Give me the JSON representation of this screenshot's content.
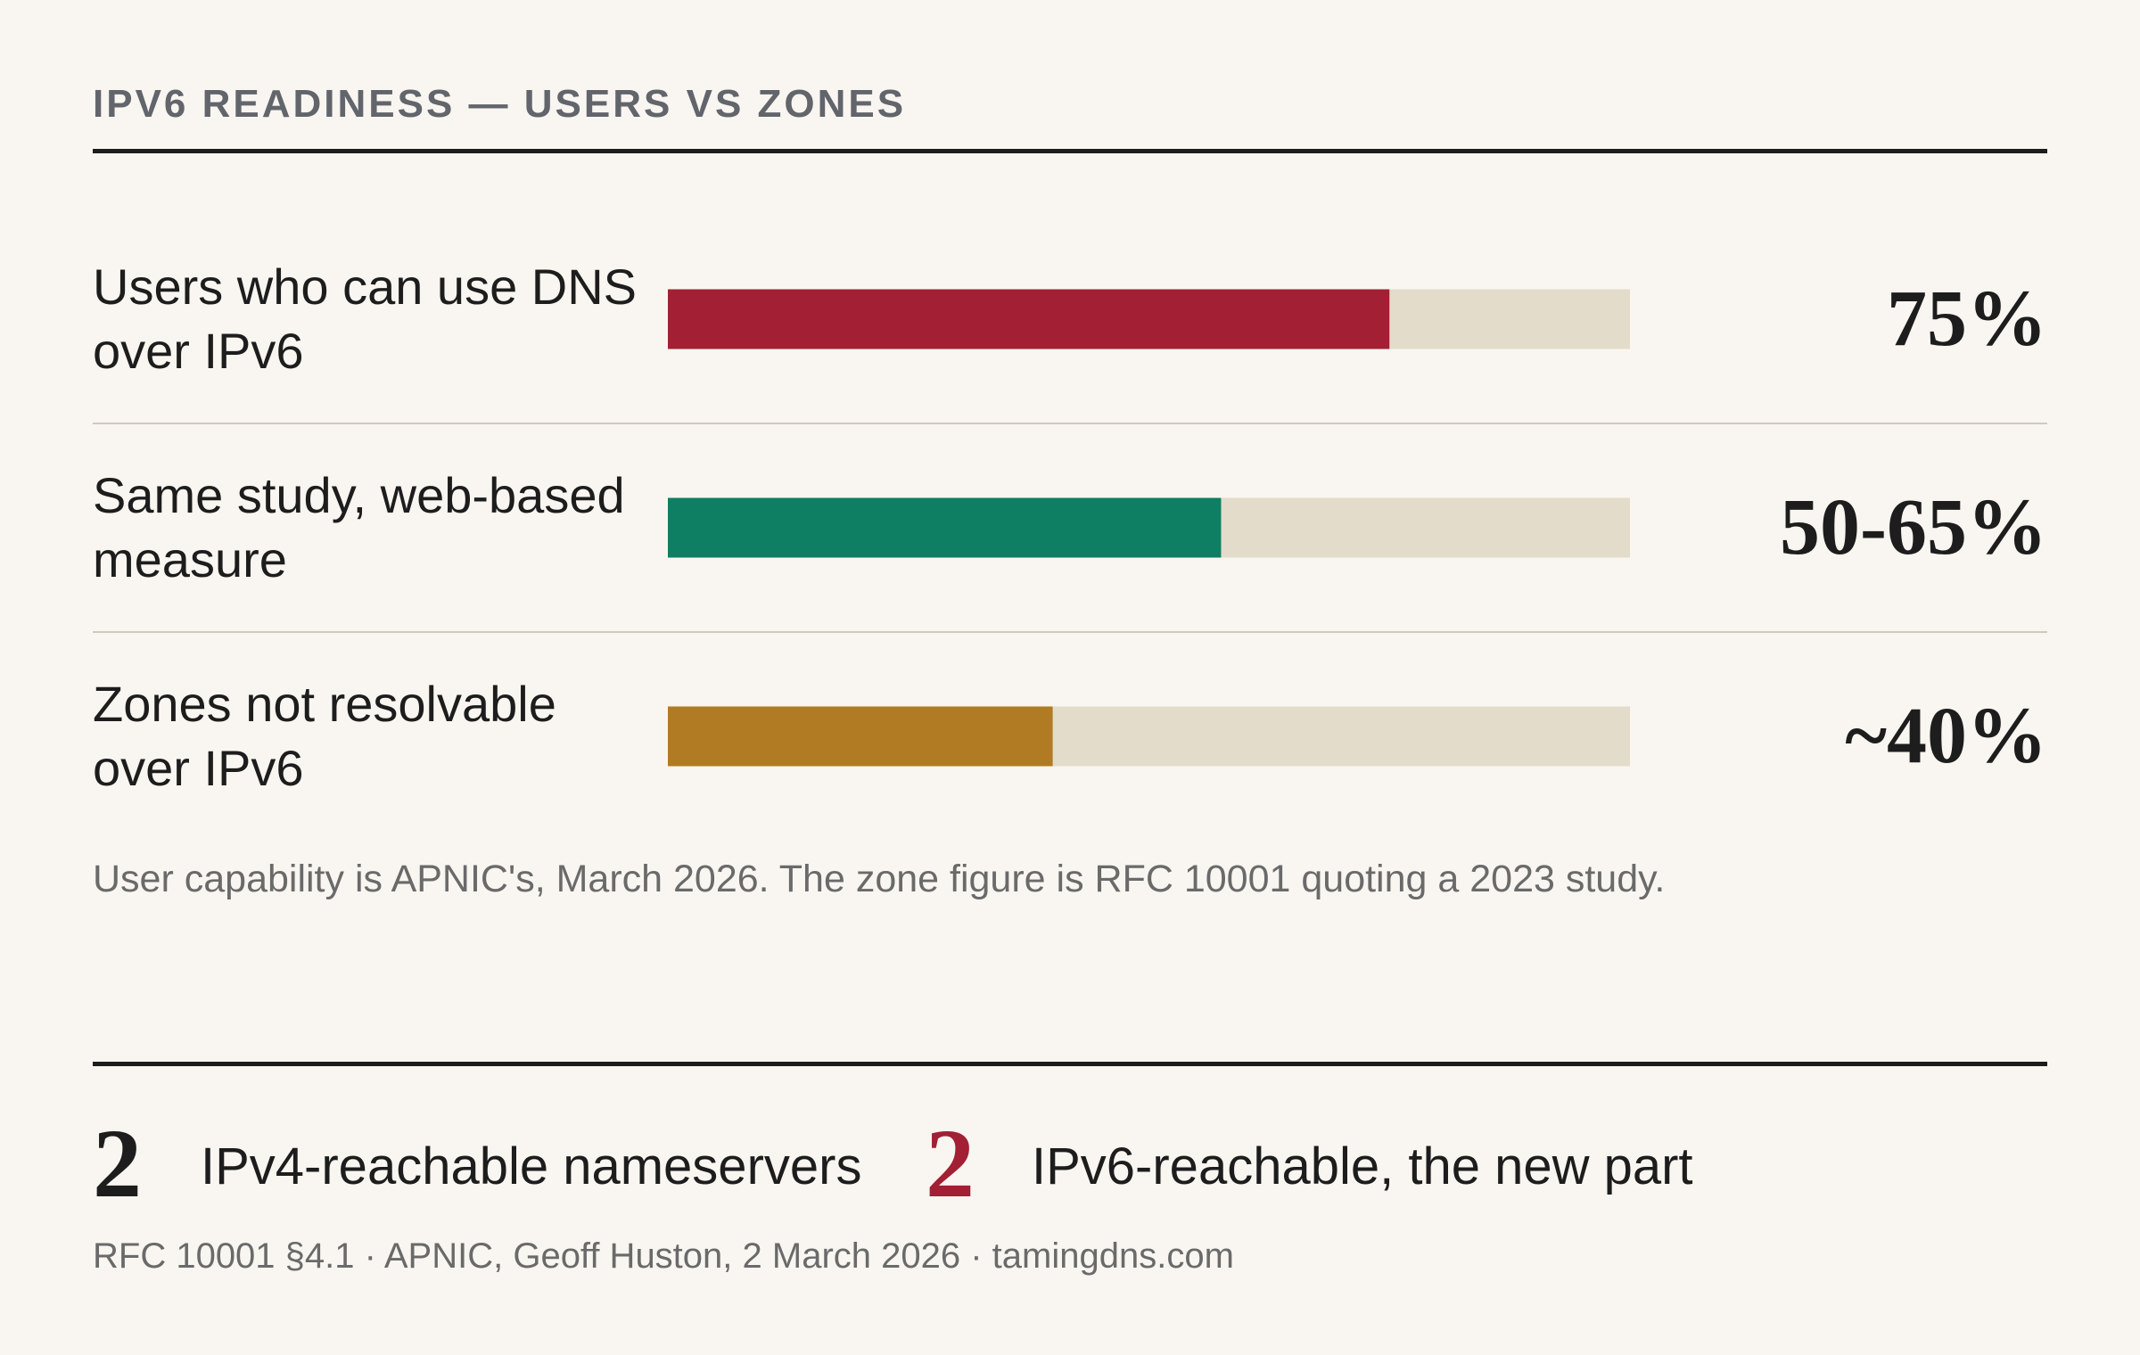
{
  "chart_data": {
    "type": "hbar",
    "title": "IPV6 READINESS — USERS VS ZONES",
    "categories": [
      "Users who can use DNS over IPv6",
      "Same study, web-based measure",
      "Zones not resolvable over IPv6"
    ],
    "values": [
      75,
      57.5,
      40
    ],
    "value_labels": [
      "75%",
      "50-65%",
      "~40%"
    ],
    "colors": [
      "#a31f34",
      "#0e7f62",
      "#b07b22"
    ],
    "track_color": "#e3dccb",
    "xlim": [
      0,
      100
    ]
  },
  "note": "User capability is APNIC's, March 2026. The zone figure is RFC 10001 quoting a 2023 study.",
  "stats": [
    {
      "number": 2,
      "label": "IPv4-reachable nameservers",
      "color": "#1d1d1d"
    },
    {
      "number": 2,
      "label": "IPv6-reachable, the new part",
      "color": "#a31f34"
    }
  ],
  "source": "RFC 10001 §4.1 · APNIC, Geoff Huston, 2 March 2026 · tamingdns.com"
}
